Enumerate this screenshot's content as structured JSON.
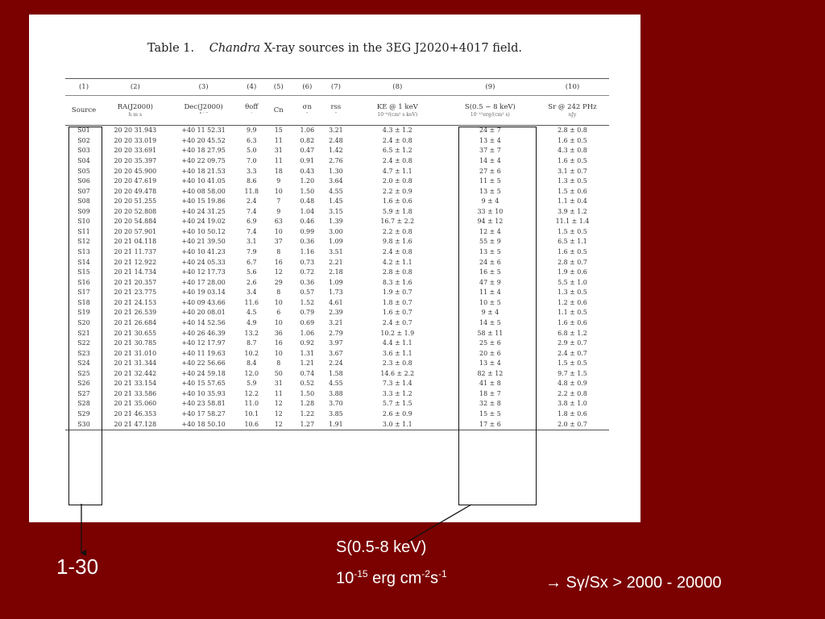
{
  "caption": {
    "label": "Table 1.",
    "title_italic": "Chandra",
    "title_rest": "X-ray sources in the 3EG J2020+4017 field."
  },
  "column_numbers": [
    "(1)",
    "(2)",
    "(3)",
    "(4)",
    "(5)",
    "(6)",
    "(7)",
    "(8)",
    "(9)",
    "(10)"
  ],
  "column_headers": [
    {
      "name": "Source",
      "unit": ""
    },
    {
      "name": "RA(J2000)",
      "unit": "h  m  s"
    },
    {
      "name": "Dec(J2000)",
      "unit": "°  ′  ″"
    },
    {
      "name": "θoff",
      "unit": "′"
    },
    {
      "name": "Cn",
      "unit": ""
    },
    {
      "name": "σn",
      "unit": "″"
    },
    {
      "name": "rss",
      "unit": "″"
    },
    {
      "name": "KE @ 1 keV",
      "unit": "10⁻⁶/(cm² s keV)"
    },
    {
      "name": "S(0.5 − 8 keV)",
      "unit": "10⁻¹⁵erg/(cm² s)"
    },
    {
      "name": "Sr @ 242 PHz",
      "unit": "nJy"
    }
  ],
  "rows": [
    [
      "S01",
      "20 20 31.943",
      "+40 11 52.31",
      "9.9",
      "15",
      "1.06",
      "3.21",
      "4.3 ± 1.2",
      "24 ± 7",
      "2.8 ± 0.8"
    ],
    [
      "S02",
      "20 20 33.019",
      "+40 20 45.52",
      "6.3",
      "11",
      "0.82",
      "2.48",
      "2.4 ± 0.8",
      "13 ± 4",
      "1.6 ± 0.5"
    ],
    [
      "S03",
      "20 20 33.691",
      "+40 18 27.95",
      "5.0",
      "31",
      "0.47",
      "1.42",
      "6.5 ± 1.2",
      "37 ± 7",
      "4.3 ± 0.8"
    ],
    [
      "S04",
      "20 20 35.397",
      "+40 22 09.75",
      "7.0",
      "11",
      "0.91",
      "2.76",
      "2.4 ± 0.8",
      "14 ± 4",
      "1.6 ± 0.5"
    ],
    [
      "S05",
      "20 20 45.900",
      "+40 18 21.53",
      "3.3",
      "18",
      "0.43",
      "1.30",
      "4.7 ± 1.1",
      "27 ± 6",
      "3.1 ± 0.7"
    ],
    [
      "S06",
      "20 20 47.619",
      "+40 10 41.05",
      "8.6",
      "9",
      "1.20",
      "3.64",
      "2.0 ± 0.8",
      "11 ± 5",
      "1.3 ± 0.5"
    ],
    [
      "S07",
      "20 20 49.478",
      "+40 08 58.00",
      "11.8",
      "10",
      "1.50",
      "4.55",
      "2.2 ± 0.9",
      "13 ± 5",
      "1.5 ± 0.6"
    ],
    [
      "S08",
      "20 20 51.255",
      "+40 15 19.86",
      "2.4",
      "7",
      "0.48",
      "1.45",
      "1.6 ± 0.6",
      "9 ± 4",
      "1.1 ± 0.4"
    ],
    [
      "S09",
      "20 20 52.808",
      "+40 24 31.25",
      "7.4",
      "9",
      "1.04",
      "3.15",
      "5.9 ± 1.8",
      "33 ± 10",
      "3.9 ± 1.2"
    ],
    [
      "S10",
      "20 20 54.884",
      "+40 24 19.02",
      "6.9",
      "63",
      "0.46",
      "1.39",
      "16.7 ± 2.2",
      "94 ± 12",
      "11.1 ± 1.4"
    ],
    [
      "S11",
      "20 20 57.901",
      "+40 10 50.12",
      "7.4",
      "10",
      "0.99",
      "3.00",
      "2.2 ± 0.8",
      "12 ± 4",
      "1.5 ± 0.5"
    ],
    [
      "S12",
      "20 21 04.118",
      "+40 21 39.50",
      "3.1",
      "37",
      "0.36",
      "1.09",
      "9.8 ± 1.6",
      "55 ± 9",
      "6.5 ± 1.1"
    ],
    [
      "S13",
      "20 21 11.737",
      "+40 10 41.23",
      "7.9",
      "8",
      "1.16",
      "3.51",
      "2.4 ± 0.8",
      "13 ± 5",
      "1.6 ± 0.5"
    ],
    [
      "S14",
      "20 21 12.922",
      "+40 24 05.33",
      "6.7",
      "16",
      "0.73",
      "2.21",
      "4.2 ± 1.1",
      "24 ± 6",
      "2.8 ± 0.7"
    ],
    [
      "S15",
      "20 21 14.734",
      "+40 12 17.73",
      "5.6",
      "12",
      "0.72",
      "2.18",
      "2.8 ± 0.8",
      "16 ± 5",
      "1.9 ± 0.6"
    ],
    [
      "S16",
      "20 21 20.357",
      "+40 17 28.00",
      "2.6",
      "29",
      "0.36",
      "1.09",
      "8.3 ± 1.6",
      "47 ± 9",
      "5.5 ± 1.0"
    ],
    [
      "S17",
      "20 21 23.775",
      "+40 19 03.14",
      "3.4",
      "8",
      "0.57",
      "1.73",
      "1.9 ± 0.7",
      "11 ± 4",
      "1.3 ± 0.5"
    ],
    [
      "S18",
      "20 21 24.153",
      "+40 09 43.66",
      "11.6",
      "10",
      "1.52",
      "4.61",
      "1.8 ± 0.7",
      "10 ± 5",
      "1.2 ± 0.6"
    ],
    [
      "S19",
      "20 21 26.539",
      "+40 20 08.01",
      "4.5",
      "6",
      "0.79",
      "2.39",
      "1.6 ± 0.7",
      "9 ± 4",
      "1.1 ± 0.5"
    ],
    [
      "S20",
      "20 21 26.684",
      "+40 14 52.56",
      "4.9",
      "10",
      "0.69",
      "3.21",
      "2.4 ± 0.7",
      "14 ± 5",
      "1.6 ± 0.6"
    ],
    [
      "S21",
      "20 21 30.655",
      "+40 26 46.39",
      "13.2",
      "36",
      "1.06",
      "2.79",
      "10.2 ± 1.9",
      "58 ± 11",
      "6.8 ± 1.2"
    ],
    [
      "S22",
      "20 21 30.785",
      "+40 12 17.97",
      "8.7",
      "16",
      "0.92",
      "3.97",
      "4.4 ± 1.1",
      "25 ± 6",
      "2.9 ± 0.7"
    ],
    [
      "S23",
      "20 21 31.010",
      "+40 11 19.63",
      "10.2",
      "10",
      "1.31",
      "3.67",
      "3.6 ± 1.1",
      "20 ± 6",
      "2.4 ± 0.7"
    ],
    [
      "S24",
      "20 21 31.344",
      "+40 22 56.66",
      "8.4",
      "8",
      "1.21",
      "2.24",
      "2.3 ± 0.8",
      "13 ± 4",
      "1.5 ± 0.5"
    ],
    [
      "S25",
      "20 21 32.442",
      "+40 24 59.18",
      "12.0",
      "50",
      "0.74",
      "1.58",
      "14.6 ± 2.2",
      "82 ± 12",
      "9.7 ± 1.5"
    ],
    [
      "S26",
      "20 21 33.154",
      "+40 15 57.65",
      "5.9",
      "31",
      "0.52",
      "4.55",
      "7.3 ± 1.4",
      "41 ± 8",
      "4.8 ± 0.9"
    ],
    [
      "S27",
      "20 21 33.586",
      "+40 10 35.93",
      "12.2",
      "11",
      "1.50",
      "3.88",
      "3.3 ± 1.2",
      "18 ± 7",
      "2.2 ± 0.8"
    ],
    [
      "S28",
      "20 21 35.060",
      "+40 23 58.81",
      "11.0",
      "12",
      "1.28",
      "3.70",
      "5.7 ± 1.5",
      "32 ± 8",
      "3.8 ± 1.0"
    ],
    [
      "S29",
      "20 21 46.353",
      "+40 17 58.27",
      "10.1",
      "12",
      "1.22",
      "3.85",
      "2.6 ± 0.9",
      "15 ± 5",
      "1.8 ± 0.6"
    ],
    [
      "S30",
      "20 21 47.128",
      "+40 18 50.10",
      "10.6",
      "12",
      "1.27",
      "1.91",
      "3.0 ± 1.1",
      "17 ± 6",
      "2.0 ± 0.7"
    ]
  ],
  "annotations": {
    "source_range": "1-30",
    "flux_label": "S(0.5-8 keV)",
    "flux_unit_a": "10",
    "flux_unit_a_sup": "-15",
    "flux_unit_b": " erg cm",
    "flux_unit_b_sup": "-2",
    "flux_unit_c": "s",
    "flux_unit_c_sup": "-1",
    "ratio_text": "→ Sγ/Sx > 2000 - 20000"
  },
  "colors": {
    "background": "#7b0000",
    "page": "#ffffff"
  }
}
